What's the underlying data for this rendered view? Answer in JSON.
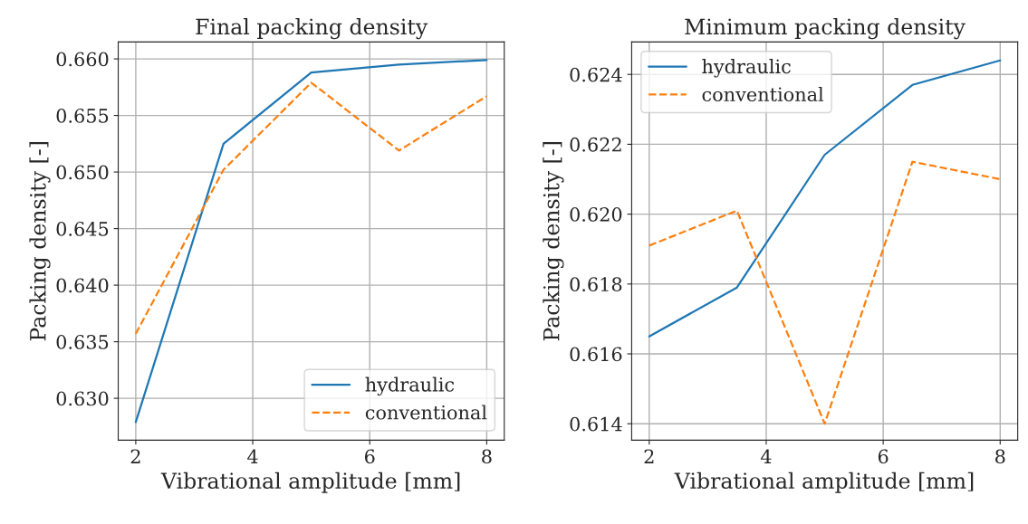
{
  "chart_data": [
    {
      "type": "line",
      "title": "Final packing density",
      "xlabel": "Vibrational amplitude [mm]",
      "ylabel": "Packing density [-]",
      "x": [
        2,
        3.5,
        5,
        6.5,
        8
      ],
      "series": [
        {
          "name": "hydraulic",
          "color": "#1f77b4",
          "values": [
            0.6279,
            0.6525,
            0.6588,
            0.6595,
            0.6599
          ],
          "line_style": "solid"
        },
        {
          "name": "conventional",
          "color": "#ff7f0e",
          "values": [
            0.6357,
            0.6502,
            0.6579,
            0.6519,
            0.6567
          ],
          "line_style": "dashed"
        }
      ],
      "xlim": [
        1.7,
        8.3
      ],
      "xticks": [
        2,
        4,
        6,
        8
      ],
      "ylim": [
        0.6263,
        0.6615
      ],
      "yticks": [
        {
          "value": 0.63,
          "label": "0.630"
        },
        {
          "value": 0.635,
          "label": "0.635"
        },
        {
          "value": 0.64,
          "label": "0.640"
        },
        {
          "value": 0.645,
          "label": "0.645"
        },
        {
          "value": 0.65,
          "label": "0.650"
        },
        {
          "value": 0.655,
          "label": "0.655"
        },
        {
          "value": 0.66,
          "label": "0.660"
        }
      ],
      "grid": true,
      "legend": "bottom right"
    },
    {
      "type": "line",
      "title": "Minimum packing density",
      "xlabel": "Vibrational amplitude [mm]",
      "ylabel": "Packing density [-]",
      "x": [
        2,
        3.5,
        5,
        6.5,
        8
      ],
      "series": [
        {
          "name": "hydraulic",
          "color": "#1f77b4",
          "values": [
            0.6165,
            0.6179,
            0.6217,
            0.6237,
            0.6244
          ],
          "line_style": "solid"
        },
        {
          "name": "conventional",
          "color": "#ff7f0e",
          "values": [
            0.6191,
            0.6201,
            0.614,
            0.6215,
            0.621
          ],
          "line_style": "dashed"
        }
      ],
      "xlim": [
        1.7,
        8.3
      ],
      "xticks": [
        2,
        4,
        6,
        8
      ],
      "ylim": [
        0.61353,
        0.62493
      ],
      "yticks": [
        {
          "value": 0.614,
          "label": "0.614"
        },
        {
          "value": 0.616,
          "label": "0.616"
        },
        {
          "value": 0.618,
          "label": "0.618"
        },
        {
          "value": 0.62,
          "label": "0.620"
        },
        {
          "value": 0.622,
          "label": "0.622"
        },
        {
          "value": 0.624,
          "label": "0.624"
        }
      ],
      "grid": true,
      "legend": "top left"
    }
  ]
}
